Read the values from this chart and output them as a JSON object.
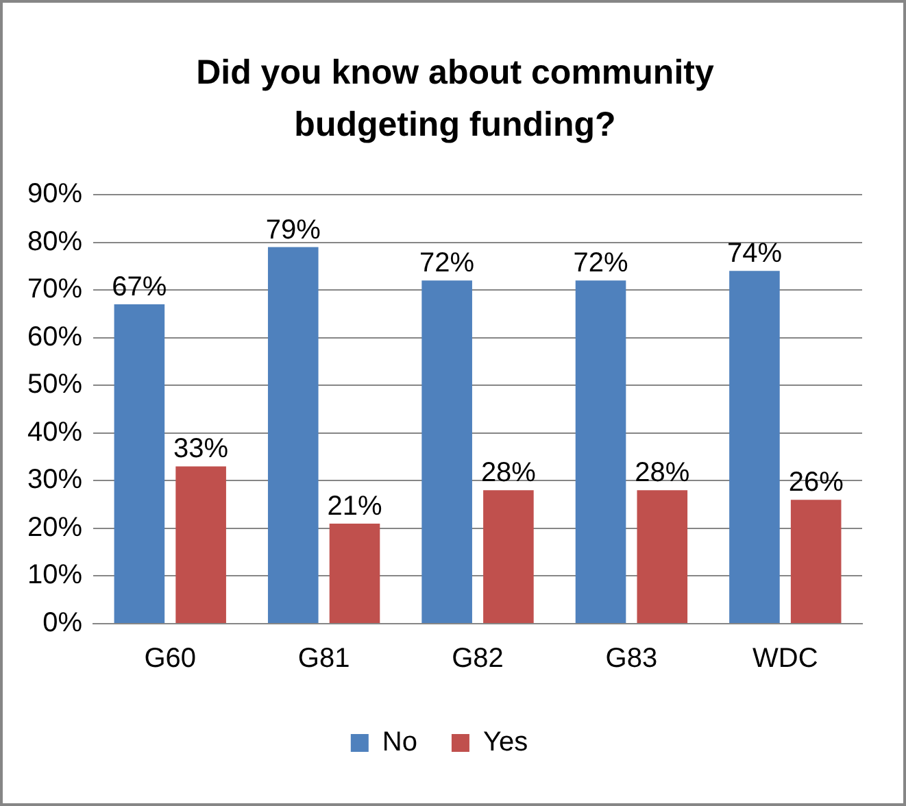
{
  "chart_data": {
    "type": "bar",
    "title": "Did you know about community budgeting funding?",
    "categories": [
      "G60",
      "G81",
      "G82",
      "G83",
      "WDC"
    ],
    "series": [
      {
        "name": "No",
        "color": "#4f81bd",
        "values": [
          67,
          79,
          72,
          72,
          74
        ],
        "value_labels": [
          "67%",
          "79%",
          "72%",
          "72%",
          "74%"
        ]
      },
      {
        "name": "Yes",
        "color": "#c0504d",
        "values": [
          33,
          21,
          28,
          28,
          26
        ],
        "value_labels": [
          "33%",
          "21%",
          "28%",
          "28%",
          "26%"
        ]
      }
    ],
    "ylim": [
      0,
      90
    ],
    "yticks": [
      {
        "value": 0,
        "label": "0%"
      },
      {
        "value": 10,
        "label": "10%"
      },
      {
        "value": 20,
        "label": "20%"
      },
      {
        "value": 30,
        "label": "30%"
      },
      {
        "value": 40,
        "label": "40%"
      },
      {
        "value": 50,
        "label": "50%"
      },
      {
        "value": 60,
        "label": "60%"
      },
      {
        "value": 70,
        "label": "70%"
      },
      {
        "value": 80,
        "label": "80%"
      },
      {
        "value": 90,
        "label": "90%"
      }
    ],
    "grid": "y",
    "legend": "bottom"
  }
}
